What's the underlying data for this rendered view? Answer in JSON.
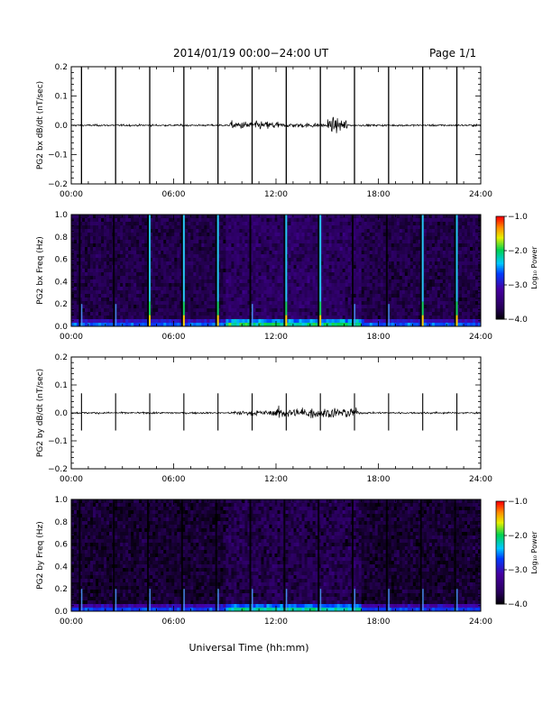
{
  "header": {
    "title": "2014/01/19   00:00−24:00 UT",
    "page": "Page 1/1"
  },
  "colors": {
    "trace": "#000000",
    "background": "#ffffff"
  },
  "chart_data": [
    {
      "type": "line",
      "panel": "bx-waveform",
      "ylabel": "PG2 bx dB/dt (nT/sec)",
      "xlim": [
        0,
        24
      ],
      "ylim": [
        -0.2,
        0.2
      ],
      "xticks": [
        "00:00",
        "06:00",
        "12:00",
        "18:00",
        "24:00"
      ],
      "yticks": [
        "0.2",
        "0.1",
        "0.0",
        "−0.1",
        "−0.2"
      ],
      "calibration_pulses_hours": [
        0.6,
        2.6,
        4.6,
        6.6,
        8.6,
        10.6,
        12.6,
        14.6,
        16.6,
        18.6,
        20.6,
        22.6
      ],
      "baseline_noise_amplitude": 0.005,
      "activity_segments": [
        {
          "start": 9.3,
          "end": 12.2,
          "amplitude": 0.022
        },
        {
          "start": 12.2,
          "end": 15.0,
          "amplitude": 0.012
        },
        {
          "start": 15.0,
          "end": 16.2,
          "amplitude": 0.035
        }
      ]
    },
    {
      "type": "heatmap",
      "panel": "bx-spectrogram",
      "ylabel": "PG2 bx Freq (Hz)",
      "xlim": [
        0,
        24
      ],
      "ylim": [
        0.0,
        1.0
      ],
      "xticks": [
        "00:00",
        "06:00",
        "12:00",
        "18:00",
        "24:00"
      ],
      "yticks": [
        "1.0",
        "0.8",
        "0.6",
        "0.4",
        "0.2",
        "0.0"
      ],
      "colorbar": {
        "label": "Log₁₀ Power",
        "range": [
          -4.0,
          -1.0
        ],
        "ticks": [
          "−1.0",
          "−2.0",
          "−3.0",
          "−4.0"
        ]
      },
      "background_log_power": -3.7,
      "bright_lines_hours": [
        4.6,
        6.6,
        8.6,
        12.6,
        14.6,
        20.6,
        22.6
      ],
      "dim_lines_hours": [
        0.6,
        2.6,
        10.6,
        16.6,
        18.6
      ]
    },
    {
      "type": "line",
      "panel": "by-waveform",
      "ylabel": "PG2 by dB/dt (nT/sec)",
      "xlim": [
        0,
        24
      ],
      "ylim": [
        -0.2,
        0.2
      ],
      "xticks": [
        "00:00",
        "06:00",
        "12:00",
        "18:00",
        "24:00"
      ],
      "yticks": [
        "0.2",
        "0.1",
        "0.0",
        "−0.1",
        "−0.2"
      ],
      "calibration_pulses_hours": [
        0.6,
        2.6,
        4.6,
        6.6,
        8.6,
        10.6,
        12.6,
        14.6,
        16.6,
        18.6,
        20.6,
        22.6
      ],
      "pulse_amplitude": 0.07,
      "baseline_noise_amplitude": 0.005,
      "activity_segments": [
        {
          "start": 9.5,
          "end": 12.0,
          "amplitude": 0.015
        },
        {
          "start": 12.0,
          "end": 16.8,
          "amplitude": 0.03
        }
      ]
    },
    {
      "type": "heatmap",
      "panel": "by-spectrogram",
      "ylabel": "PG2 by Freq (Hz)",
      "xlim": [
        0,
        24
      ],
      "ylim": [
        0.0,
        1.0
      ],
      "xticks": [
        "00:00",
        "06:00",
        "12:00",
        "18:00",
        "24:00"
      ],
      "yticks": [
        "1.0",
        "0.8",
        "0.6",
        "0.4",
        "0.2",
        "0.0"
      ],
      "xlabel": "Universal Time (hh:mm)",
      "colorbar": {
        "label": "Log₁₀ Power",
        "range": [
          -4.0,
          -1.0
        ],
        "ticks": [
          "−1.0",
          "−2.0",
          "−3.0",
          "−4.0"
        ]
      },
      "background_log_power": -3.8,
      "bright_lines_hours": [],
      "dim_lines_hours": [
        0.6,
        2.6,
        4.6,
        6.6,
        8.6,
        10.6,
        12.6,
        14.6,
        16.6,
        18.6,
        20.6,
        22.6
      ]
    }
  ]
}
